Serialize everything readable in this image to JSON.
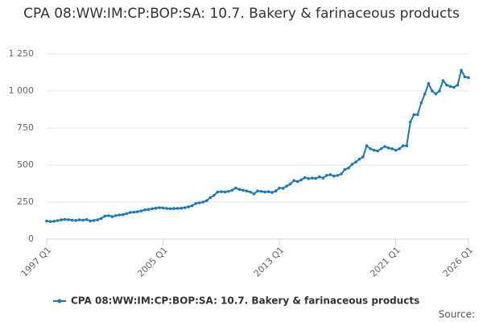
{
  "chart_data": {
    "type": "line",
    "title": "CPA 08:WW:IM:CP:BOP:SA: 10.7. Bakery & farinaceous products",
    "source": "Source:",
    "categories": [
      "1997 Q1",
      null,
      null,
      null,
      null,
      null,
      null,
      null,
      null,
      null,
      null,
      null,
      null,
      null,
      null,
      null,
      null,
      null,
      null,
      null,
      null,
      null,
      null,
      null,
      null,
      null,
      null,
      null,
      null,
      null,
      null,
      null,
      "2005 Q1",
      null,
      null,
      null,
      null,
      null,
      null,
      null,
      null,
      null,
      null,
      null,
      null,
      null,
      null,
      null,
      null,
      null,
      null,
      null,
      null,
      null,
      null,
      null,
      null,
      null,
      null,
      null,
      null,
      null,
      null,
      null,
      "2013 Q1",
      null,
      null,
      null,
      null,
      null,
      null,
      null,
      null,
      null,
      null,
      null,
      null,
      null,
      null,
      null,
      null,
      null,
      null,
      null,
      null,
      null,
      null,
      null,
      null,
      null,
      null,
      null,
      null,
      null,
      null,
      null,
      "2021 Q1",
      null,
      null,
      null,
      null,
      null,
      null,
      null,
      null,
      null,
      null,
      null,
      null,
      null,
      null,
      null,
      null,
      null,
      null,
      null,
      "2026 Q1"
    ],
    "series": [
      {
        "name": "CPA 08:WW:IM:CP:BOP:SA: 10.7. Bakery & farinaceous products",
        "color": "#1a7ab8",
        "values": [
          122,
          118,
          120,
          125,
          130,
          133,
          131,
          128,
          126,
          130,
          128,
          132,
          122,
          126,
          130,
          140,
          155,
          158,
          152,
          158,
          163,
          165,
          172,
          180,
          182,
          185,
          190,
          198,
          200,
          205,
          208,
          212,
          210,
          207,
          205,
          206,
          207,
          208,
          212,
          218,
          225,
          240,
          245,
          250,
          260,
          280,
          295,
          318,
          320,
          318,
          322,
          330,
          345,
          335,
          330,
          325,
          318,
          305,
          325,
          322,
          318,
          320,
          315,
          325,
          345,
          343,
          358,
          372,
          395,
          388,
          400,
          415,
          408,
          412,
          410,
          420,
          412,
          430,
          435,
          425,
          430,
          440,
          470,
          480,
          505,
          520,
          540,
          555,
          630,
          610,
          600,
          595,
          610,
          625,
          615,
          610,
          600,
          610,
          630,
          630,
          790,
          840,
          840,
          920,
          980,
          1050,
          1000,
          980,
          1000,
          1070,
          1040,
          1030,
          1025,
          1040,
          1140,
          1095,
          1090
        ]
      }
    ],
    "ylim": [
      0,
      1250
    ],
    "yticks": [
      0,
      250,
      500,
      750,
      {
        "value": 1000,
        "label": "1 000"
      },
      {
        "value": 1250,
        "label": "1 250"
      }
    ],
    "grid": true,
    "legend": "bottom"
  }
}
